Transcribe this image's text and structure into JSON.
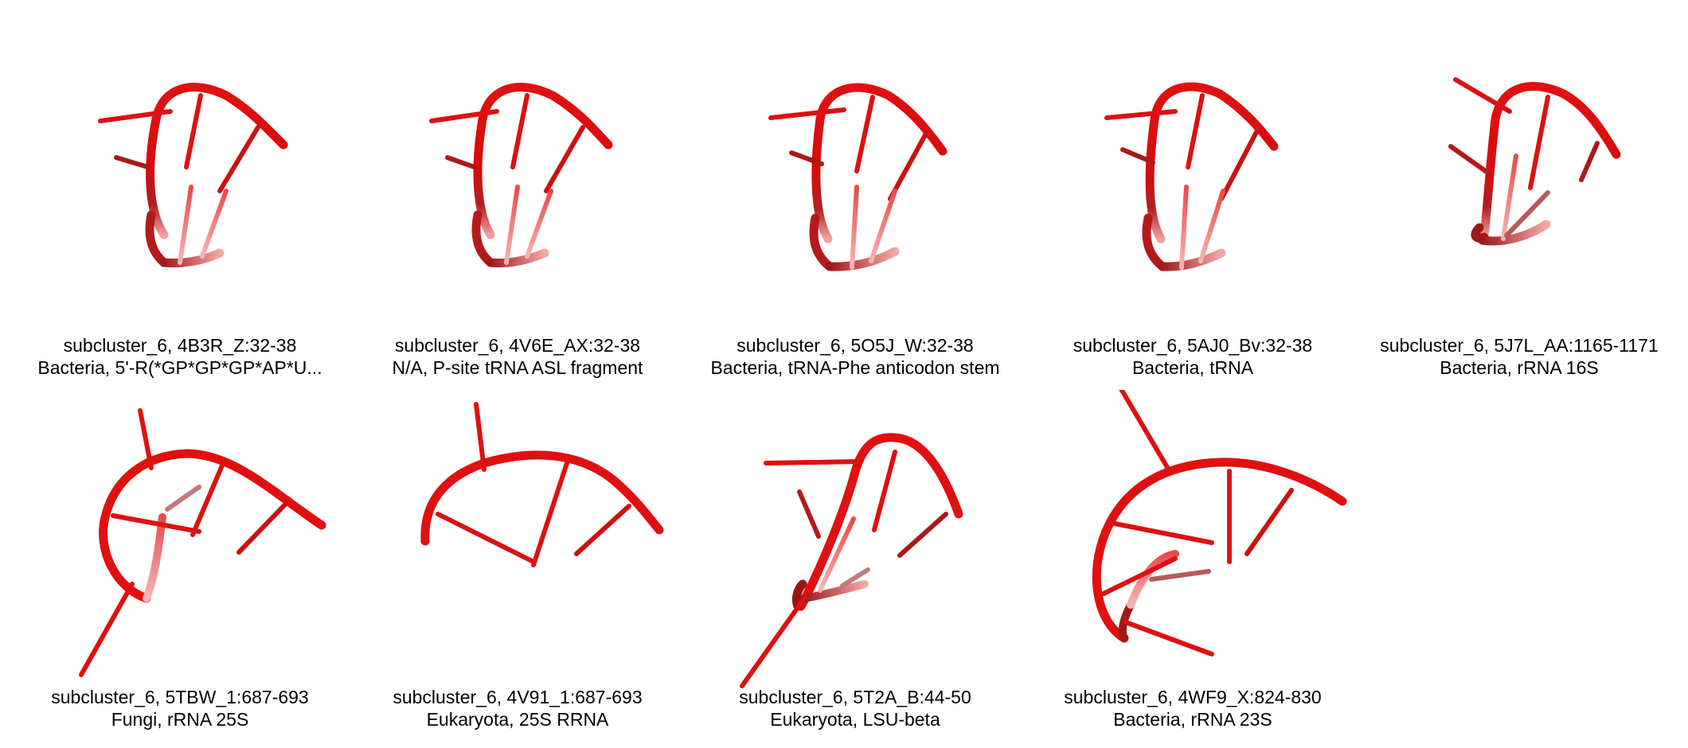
{
  "accent_color": "#e41a1c",
  "panels": [
    {
      "title": "subcluster_6, 4B3R_Z:32-38",
      "subtitle": "Bacteria, 5'-R(*GP*GP*GP*AP*U..."
    },
    {
      "title": "subcluster_6, 4V6E_AX:32-38",
      "subtitle": "N/A, P-site tRNA ASL fragment"
    },
    {
      "title": "subcluster_6, 5O5J_W:32-38",
      "subtitle": "Bacteria, tRNA-Phe anticodon stem"
    },
    {
      "title": "subcluster_6, 5AJ0_Bv:32-38",
      "subtitle": "Bacteria, tRNA"
    },
    {
      "title": "subcluster_6, 5J7L_AA:1165-1171",
      "subtitle": "Bacteria, rRNA 16S"
    },
    {
      "title": "subcluster_6, 5TBW_1:687-693",
      "subtitle": "Fungi, rRNA 25S"
    },
    {
      "title": "subcluster_6, 4V91_1:687-693",
      "subtitle": "Eukaryota, 25S RRNA"
    },
    {
      "title": "subcluster_6, 5T2A_B:44-50",
      "subtitle": "Eukaryota, LSU-beta"
    },
    {
      "title": "subcluster_6, 4WF9_X:824-830",
      "subtitle": "Bacteria, rRNA 23S"
    }
  ]
}
